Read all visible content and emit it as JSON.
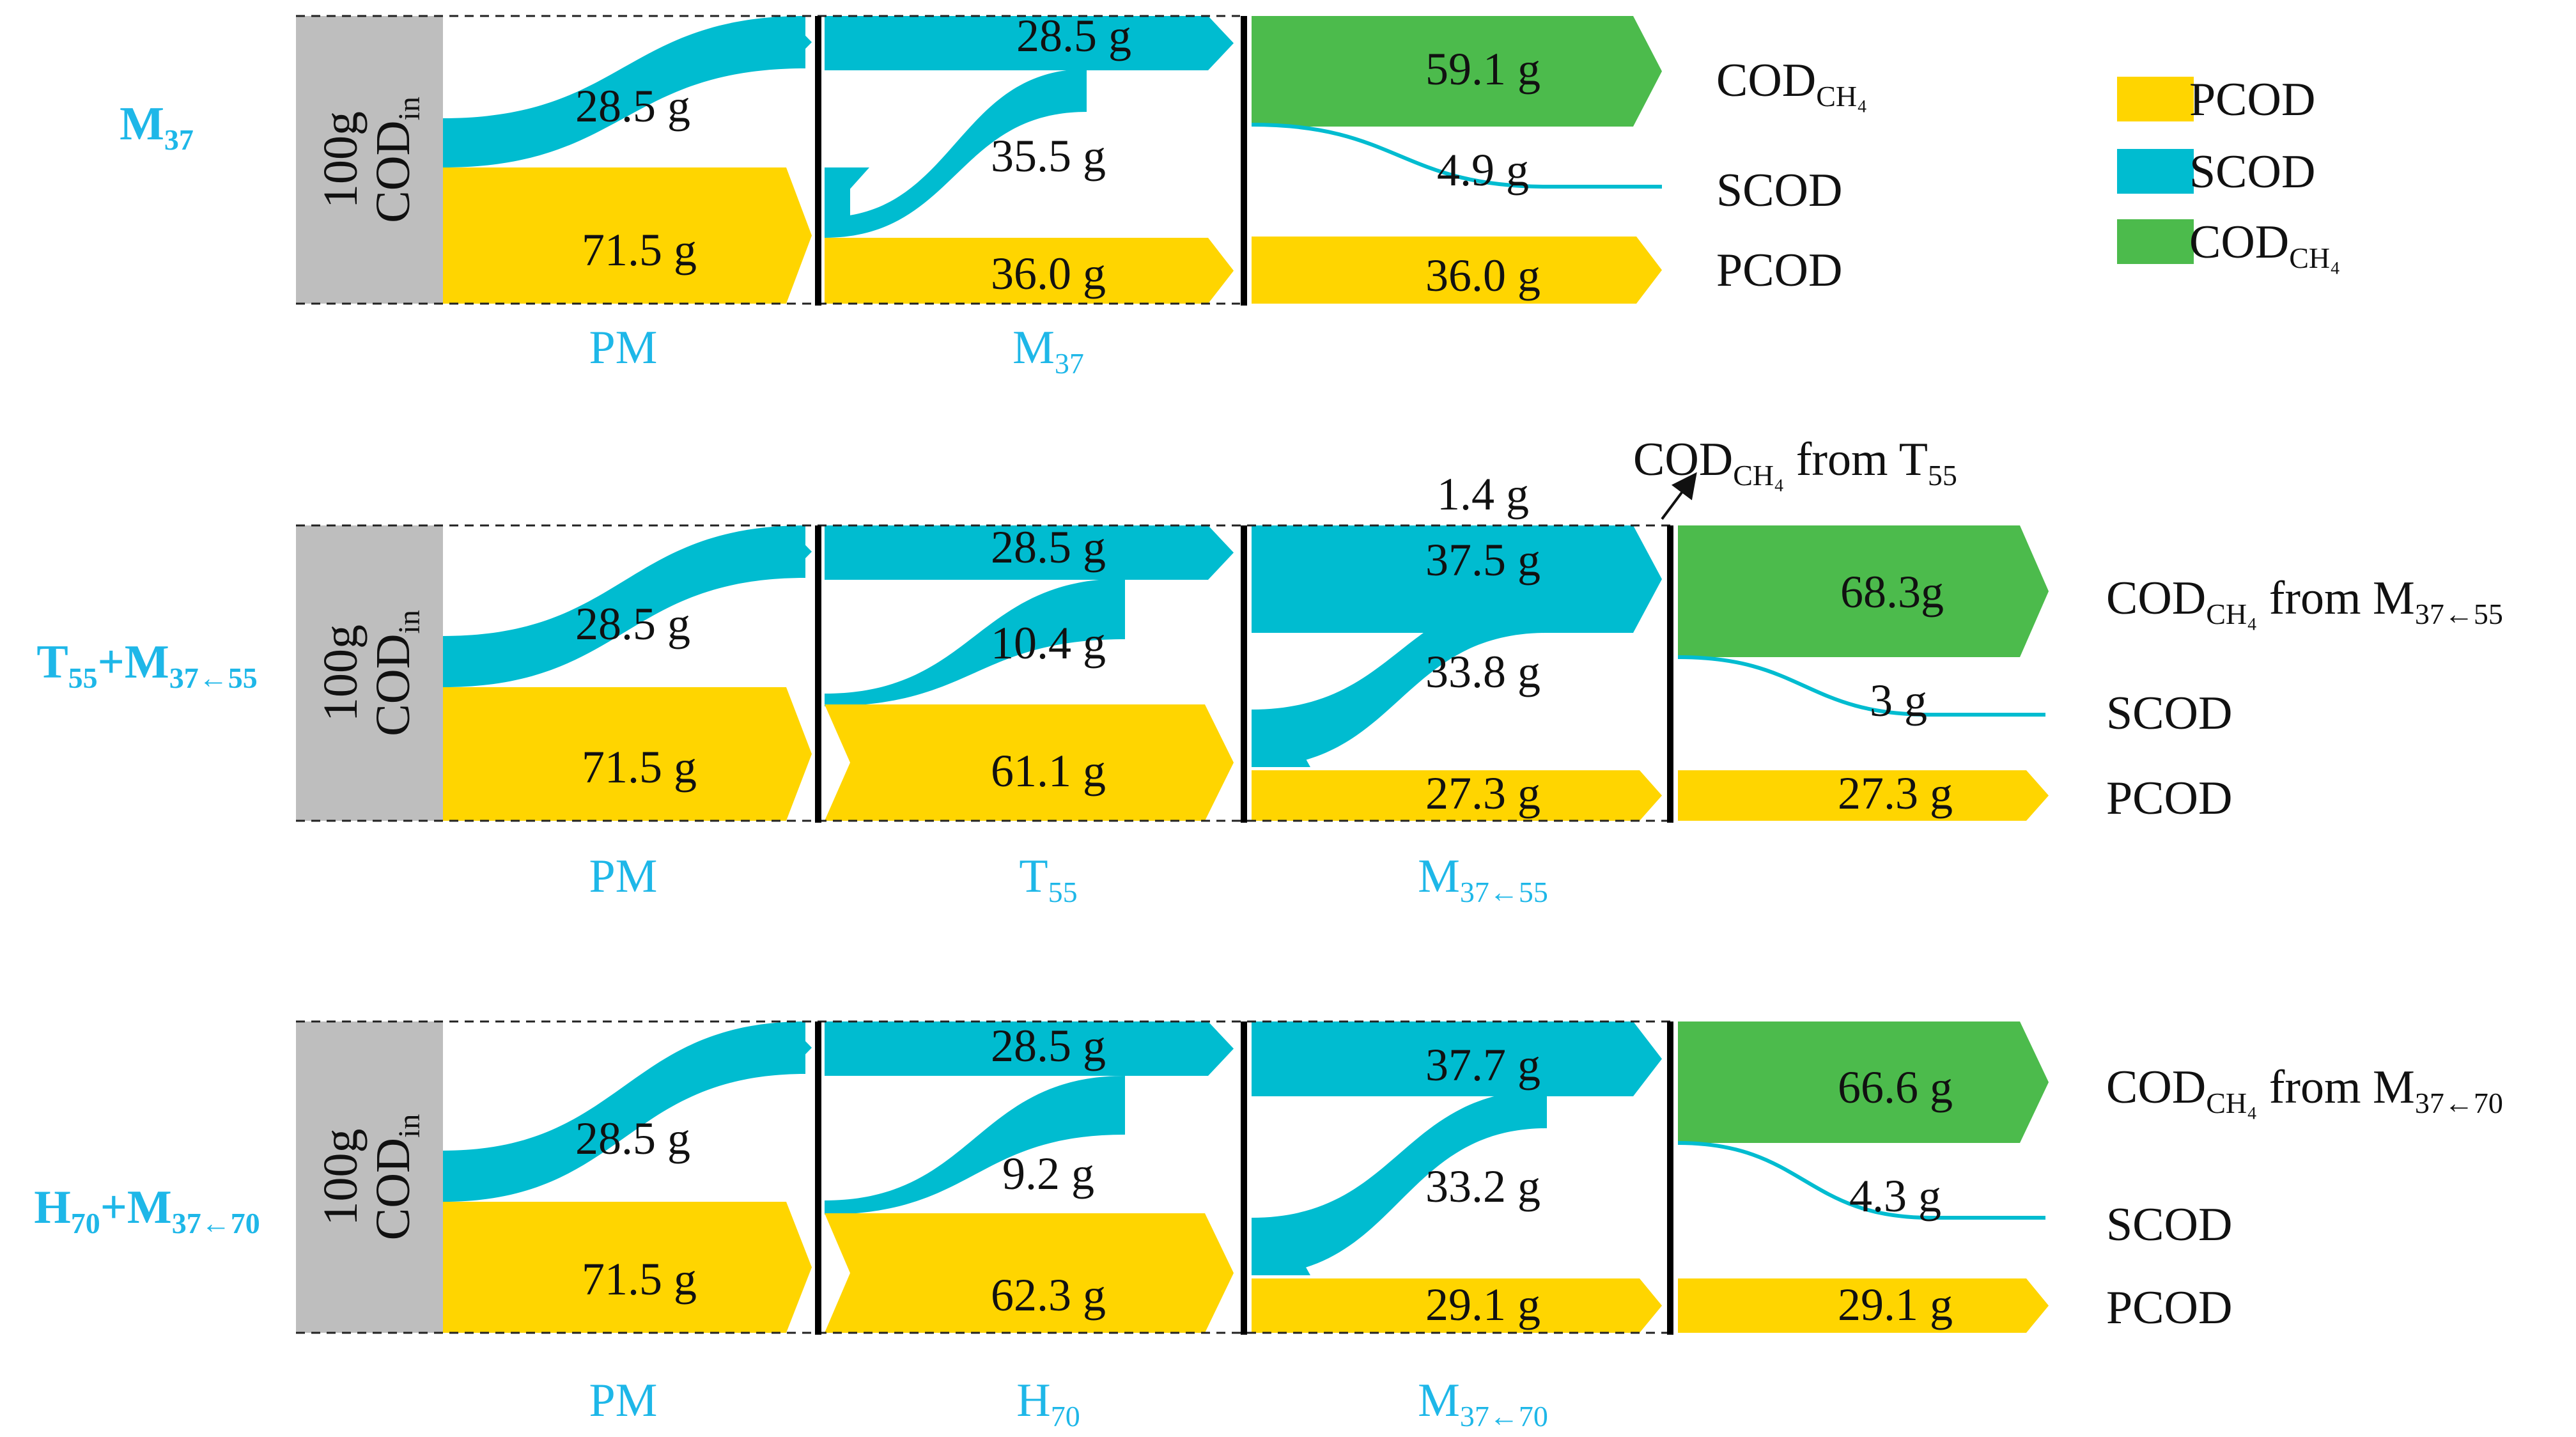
{
  "colors": {
    "pcod": "#FFD500",
    "scod": "#00BCD0",
    "ch4": "#4CBB4C",
    "influent": "#BEBEBE",
    "label_blue": "#1EB7E8",
    "text": "#111111"
  },
  "legend": {
    "items": [
      {
        "key": "pcod",
        "label": "PCOD",
        "sub": ""
      },
      {
        "key": "scod",
        "label": "SCOD",
        "sub": ""
      },
      {
        "key": "ch4",
        "label": "COD",
        "sub": "CH₄"
      }
    ]
  },
  "influent": {
    "line1": "100g",
    "line2": "COD",
    "line2_sub": "in"
  },
  "rows": [
    {
      "name": "M",
      "name_sub": "37",
      "stages": [
        {
          "label": "PM",
          "label_sub": ""
        },
        {
          "label": "M",
          "label_sub": "37"
        }
      ],
      "pm": {
        "scod": "28.5 g",
        "pcod": "71.5 g"
      },
      "s2": {
        "scod_top": "28.5 g",
        "scod_conv": "35.5 g",
        "pcod": "36.0 g"
      },
      "final": {
        "ch4": "59.1 g",
        "scod": "4.9 g",
        "pcod": "36.0 g"
      },
      "right_labels": {
        "ch4": {
          "pre": "COD",
          "sub": "CH₄",
          "mid": "",
          "sub2": ""
        },
        "scod": "SCOD",
        "pcod": "PCOD"
      }
    },
    {
      "name": "T",
      "name_sub": "55",
      "name2": "+M",
      "name2_sub": "37←55",
      "stages": [
        {
          "label": "PM",
          "label_sub": ""
        },
        {
          "label": "T",
          "label_sub": "55"
        },
        {
          "label": "M",
          "label_sub": "37←55"
        }
      ],
      "pm": {
        "scod": "28.5 g",
        "pcod": "71.5 g"
      },
      "s2": {
        "scod_top": "28.5 g",
        "scod_conv": "10.4 g",
        "pcod": "61.1 g"
      },
      "s3": {
        "scod_top": "37.5 g",
        "scod_conv": "33.8 g",
        "pcod": "27.3 g",
        "ch4_small": "1.4 g"
      },
      "final": {
        "ch4": "68.3g",
        "scod": "3 g",
        "pcod": "27.3 g"
      },
      "annotation": {
        "pre": "COD",
        "sub": "CH₄",
        "mid": " from T",
        "sub2": "55"
      },
      "right_labels": {
        "ch4": {
          "pre": "COD",
          "sub": "CH₄",
          "mid": " from M",
          "sub2": "37←55"
        },
        "scod": "SCOD",
        "pcod": "PCOD"
      }
    },
    {
      "name": "H",
      "name_sub": "70",
      "name2": "+M",
      "name2_sub": "37←70",
      "stages": [
        {
          "label": "PM",
          "label_sub": ""
        },
        {
          "label": "H",
          "label_sub": "70"
        },
        {
          "label": "M",
          "label_sub": "37←70"
        }
      ],
      "pm": {
        "scod": "28.5 g",
        "pcod": "71.5 g"
      },
      "s2": {
        "scod_top": "28.5 g",
        "scod_conv": "9.2 g",
        "pcod": "62.3 g"
      },
      "s3": {
        "scod_top": "37.7 g",
        "scod_conv": "33.2 g",
        "pcod": "29.1 g"
      },
      "final": {
        "ch4": "66.6 g",
        "scod": "4.3 g",
        "pcod": "29.1 g"
      },
      "right_labels": {
        "ch4": {
          "pre": "COD",
          "sub": "CH₄",
          "mid": " from M",
          "sub2": "37←70"
        },
        "scod": "SCOD",
        "pcod": "PCOD"
      }
    }
  ]
}
